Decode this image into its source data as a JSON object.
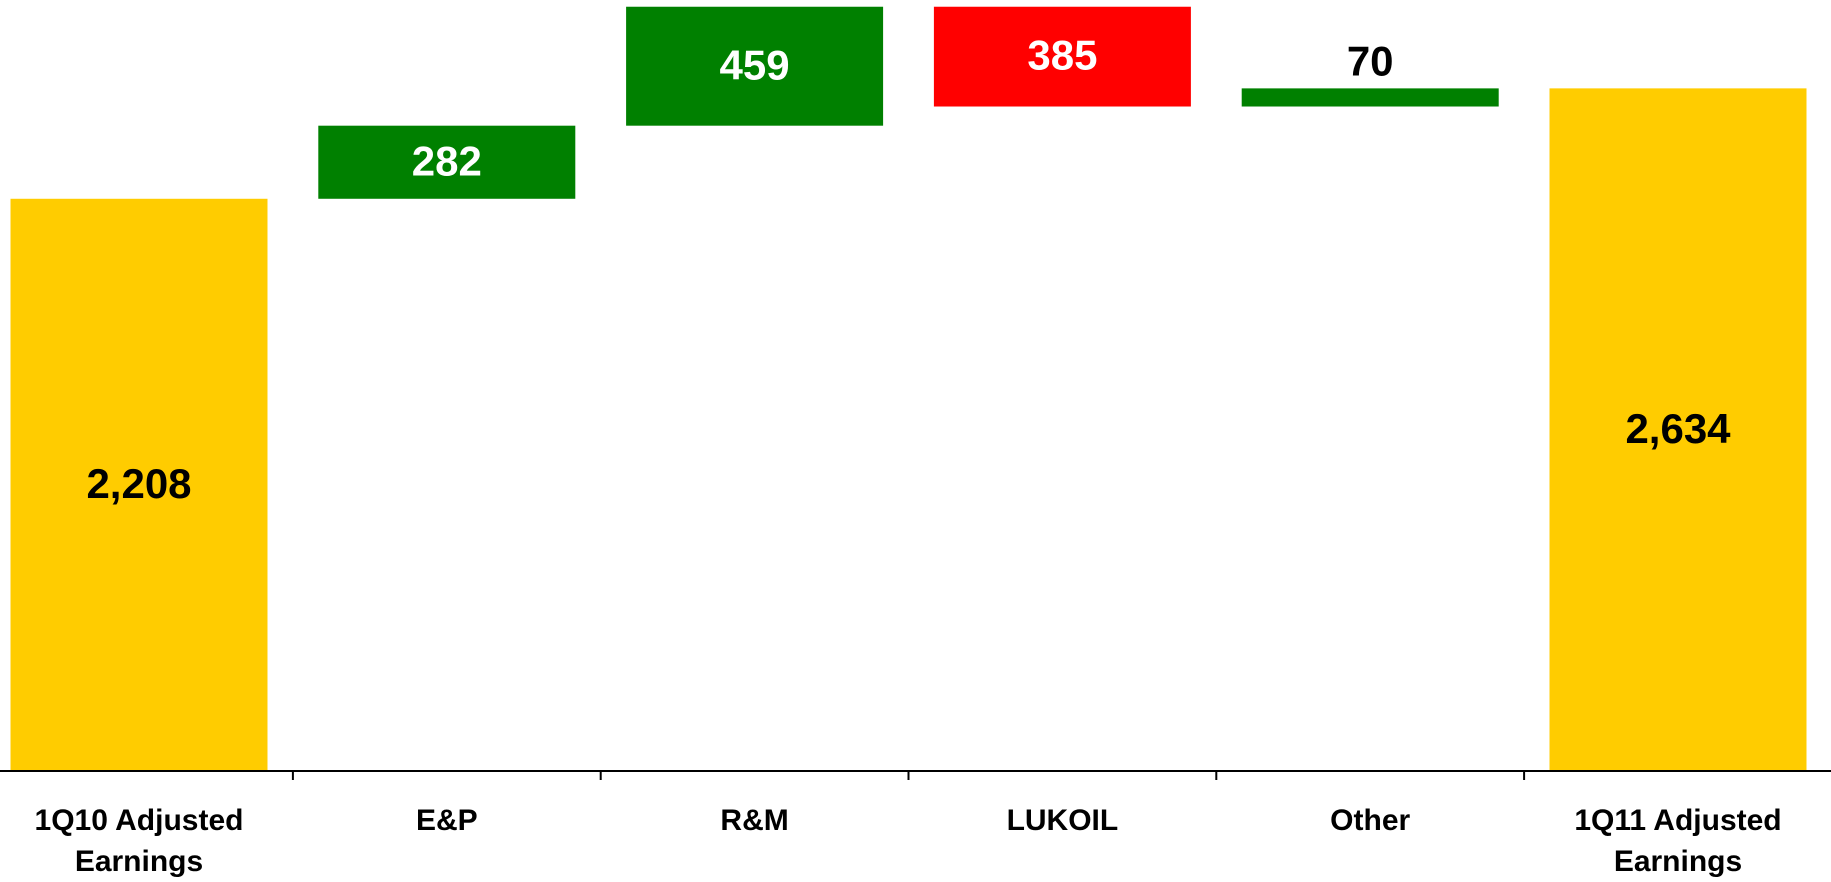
{
  "chart_data": {
    "type": "waterfall",
    "categories": [
      "1Q10 Adjusted Earnings",
      "E&P",
      "R&M",
      "LUKOIL",
      "Other",
      "1Q11 Adjusted Earnings"
    ],
    "values": [
      2208,
      282,
      459,
      -385,
      70,
      2634
    ],
    "value_labels": [
      "2,208",
      "282",
      "459",
      "385",
      "70",
      "2,634"
    ],
    "colors": [
      "#ffcc00",
      "#008000",
      "#008000",
      "#ff0000",
      "#008000",
      "#ffcc00"
    ],
    "ylim": [
      0,
      2975
    ]
  }
}
